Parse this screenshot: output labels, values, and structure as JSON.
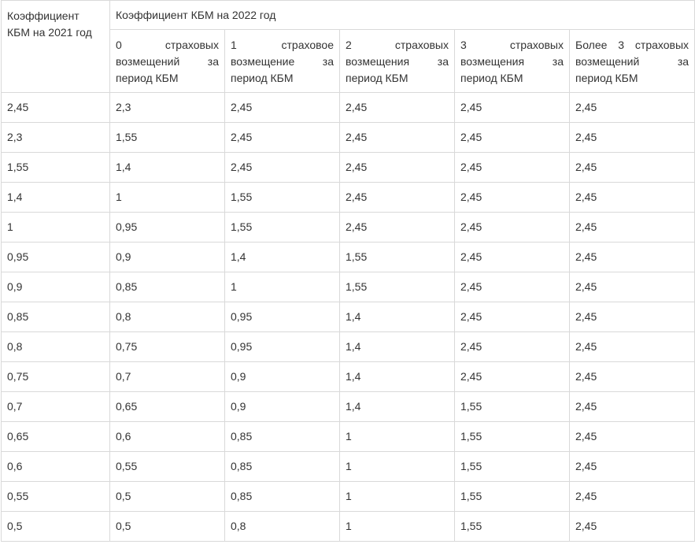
{
  "table": {
    "corner_header": "Коэффициент КБМ на 2021 год",
    "group_header": "Коэффициент КБМ на 2022 год",
    "sub_headers": [
      {
        "line1": "0 страховых",
        "line2": "возмещений за",
        "line3": "период КБМ"
      },
      {
        "line1": "1 страховое",
        "line2": "возмещение за",
        "line3": "период КБМ"
      },
      {
        "line1": "2 страховых",
        "line2": "возмещения за",
        "line3": "период КБМ"
      },
      {
        "line1": "3 страховых",
        "line2": "возмещения за",
        "line3": "период КБМ"
      },
      {
        "line1": "Более 3 страховых",
        "line2": "возмещений за",
        "line3": "период КБМ"
      }
    ],
    "rows": [
      [
        "2,45",
        "2,3",
        "2,45",
        "2,45",
        "2,45",
        "2,45"
      ],
      [
        "2,3",
        "1,55",
        "2,45",
        "2,45",
        "2,45",
        "2,45"
      ],
      [
        "1,55",
        "1,4",
        "2,45",
        "2,45",
        "2,45",
        "2,45"
      ],
      [
        "1,4",
        "1",
        "1,55",
        "2,45",
        "2,45",
        "2,45"
      ],
      [
        "1",
        "0,95",
        "1,55",
        "2,45",
        "2,45",
        "2,45"
      ],
      [
        "0,95",
        "0,9",
        "1,4",
        "1,55",
        "2,45",
        "2,45"
      ],
      [
        "0,9",
        "0,85",
        "1",
        "1,55",
        "2,45",
        "2,45"
      ],
      [
        "0,85",
        "0,8",
        "0,95",
        "1,4",
        "2,45",
        "2,45"
      ],
      [
        "0,8",
        "0,75",
        "0,95",
        "1,4",
        "2,45",
        "2,45"
      ],
      [
        "0,75",
        "0,7",
        "0,9",
        "1,4",
        "2,45",
        "2,45"
      ],
      [
        "0,7",
        "0,65",
        "0,9",
        "1,4",
        "1,55",
        "2,45"
      ],
      [
        "0,65",
        "0,6",
        "0,85",
        "1",
        "1,55",
        "2,45"
      ],
      [
        "0,6",
        "0,55",
        "0,85",
        "1",
        "1,55",
        "2,45"
      ],
      [
        "0,55",
        "0,5",
        "0,85",
        "1",
        "1,55",
        "2,45"
      ],
      [
        "0,5",
        "0,5",
        "0,8",
        "1",
        "1,55",
        "2,45"
      ]
    ]
  }
}
